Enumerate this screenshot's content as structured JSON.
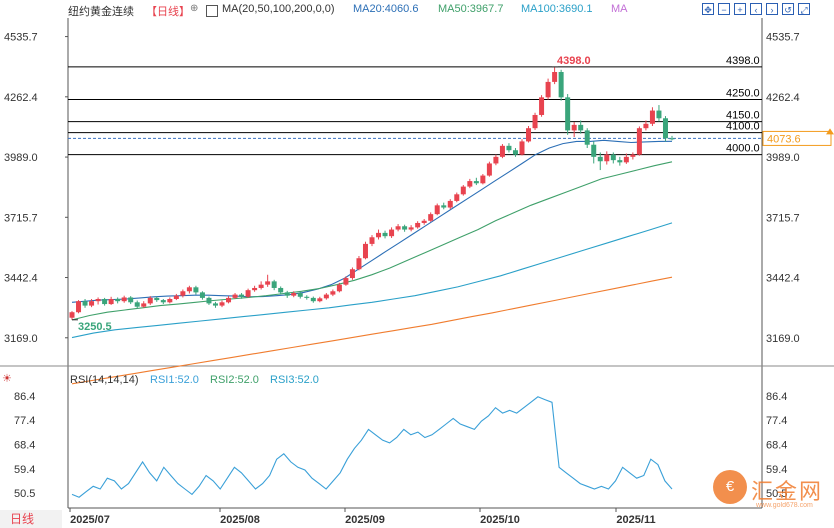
{
  "header": {
    "symbol": "纽约黄金连续",
    "period_tag": "【日线】",
    "ma_label": "MA(20,50,100,200,0,0)",
    "ma20": "MA20:4060.6",
    "ma50": "MA50:3967.7",
    "ma100": "MA100:3690.1",
    "ma_extra": "MA"
  },
  "rsi_header": {
    "label": "RSI(14,14,14)",
    "rsi1": "RSI1:52.0",
    "rsi2": "RSI2:52.0",
    "rsi3": "RSI3:52.0"
  },
  "footer": {
    "period_button": "日线"
  },
  "watermark": {
    "text": "汇金网",
    "sub": "www.gold678.com"
  },
  "colors": {
    "up": "#e8434f",
    "down": "#3aa57b",
    "ma20": "#2c6fb6",
    "ma50": "#3fa06a",
    "ma100": "#2aa0c8",
    "ma200": "#f07c2e",
    "rsi": "#3aa0d8",
    "axis": "#333333",
    "level": "#000000",
    "price_tag": "#f39b1c"
  },
  "chart_data": {
    "type": "candlestick",
    "price_axis": {
      "ylim": [
        3050,
        4620
      ],
      "ticks": [
        "4535.7",
        "4262.4",
        "3989.0",
        "3715.7",
        "3442.4",
        "3169.0"
      ]
    },
    "x_labels": [
      "2025/07",
      "2025/08",
      "2025/09",
      "2025/10",
      "2025/11"
    ],
    "levels": [
      {
        "value": 4398.0,
        "label": "4398.0"
      },
      {
        "value": 4250.0,
        "label": "4250.0"
      },
      {
        "value": 4150.0,
        "label": "4150.0"
      },
      {
        "value": 4100.0,
        "label": "4100.0"
      },
      {
        "value": 4000.0,
        "label": "4000.0"
      }
    ],
    "current_price": {
      "value": 4073.6,
      "label": "4073.6"
    },
    "annotations": [
      {
        "label": "4398.0",
        "value": 4398.0,
        "note": "high"
      },
      {
        "label": "3250.5",
        "value": 3250.5,
        "note": "low"
      }
    ],
    "candles": [
      [
        3260,
        3285,
        3290,
        3250
      ],
      [
        3285,
        3335,
        3340,
        3280
      ],
      [
        3335,
        3315,
        3345,
        3305
      ],
      [
        3315,
        3335,
        3345,
        3308
      ],
      [
        3335,
        3345,
        3352,
        3320
      ],
      [
        3345,
        3322,
        3350,
        3315
      ],
      [
        3322,
        3345,
        3355,
        3318
      ],
      [
        3345,
        3335,
        3352,
        3325
      ],
      [
        3335,
        3352,
        3360,
        3328
      ],
      [
        3352,
        3330,
        3358,
        3322
      ],
      [
        3330,
        3310,
        3338,
        3302
      ],
      [
        3310,
        3325,
        3335,
        3305
      ],
      [
        3325,
        3350,
        3358,
        3318
      ],
      [
        3350,
        3340,
        3356,
        3332
      ],
      [
        3340,
        3330,
        3345,
        3322
      ],
      [
        3330,
        3345,
        3352,
        3325
      ],
      [
        3345,
        3360,
        3368,
        3340
      ],
      [
        3360,
        3380,
        3388,
        3352
      ],
      [
        3380,
        3398,
        3405,
        3370
      ],
      [
        3398,
        3375,
        3405,
        3365
      ],
      [
        3375,
        3350,
        3380,
        3342
      ],
      [
        3350,
        3325,
        3356,
        3318
      ],
      [
        3325,
        3315,
        3332,
        3305
      ],
      [
        3315,
        3330,
        3338,
        3308
      ],
      [
        3330,
        3350,
        3358,
        3325
      ],
      [
        3350,
        3365,
        3372,
        3345
      ],
      [
        3365,
        3355,
        3372,
        3346
      ],
      [
        3355,
        3385,
        3392,
        3350
      ],
      [
        3385,
        3395,
        3405,
        3378
      ],
      [
        3395,
        3410,
        3425,
        3388
      ],
      [
        3410,
        3425,
        3455,
        3400
      ],
      [
        3425,
        3395,
        3432,
        3385
      ],
      [
        3395,
        3375,
        3402,
        3366
      ],
      [
        3375,
        3360,
        3382,
        3350
      ],
      [
        3360,
        3372,
        3380,
        3353
      ],
      [
        3372,
        3355,
        3380,
        3347
      ],
      [
        3355,
        3350,
        3362,
        3342
      ],
      [
        3350,
        3335,
        3356,
        3328
      ],
      [
        3335,
        3348,
        3355,
        3330
      ],
      [
        3348,
        3365,
        3372,
        3342
      ],
      [
        3365,
        3380,
        3388,
        3358
      ],
      [
        3380,
        3410,
        3418,
        3375
      ],
      [
        3410,
        3440,
        3448,
        3405
      ],
      [
        3440,
        3480,
        3488,
        3432
      ],
      [
        3480,
        3530,
        3540,
        3475
      ],
      [
        3530,
        3595,
        3605,
        3525
      ],
      [
        3595,
        3625,
        3635,
        3585
      ],
      [
        3625,
        3645,
        3660,
        3615
      ],
      [
        3645,
        3630,
        3655,
        3620
      ],
      [
        3630,
        3660,
        3670,
        3622
      ],
      [
        3660,
        3675,
        3685,
        3652
      ],
      [
        3675,
        3660,
        3682,
        3650
      ],
      [
        3660,
        3670,
        3680,
        3652
      ],
      [
        3670,
        3690,
        3698,
        3664
      ],
      [
        3690,
        3700,
        3708,
        3682
      ],
      [
        3700,
        3730,
        3738,
        3695
      ],
      [
        3730,
        3770,
        3778,
        3725
      ],
      [
        3770,
        3760,
        3782,
        3752
      ],
      [
        3760,
        3790,
        3798,
        3752
      ],
      [
        3790,
        3820,
        3828,
        3784
      ],
      [
        3820,
        3855,
        3862,
        3814
      ],
      [
        3855,
        3880,
        3890,
        3848
      ],
      [
        3880,
        3870,
        3895,
        3862
      ],
      [
        3870,
        3905,
        3912,
        3865
      ],
      [
        3905,
        3960,
        3968,
        3900
      ],
      [
        3960,
        3990,
        4000,
        3952
      ],
      [
        3990,
        4040,
        4048,
        3984
      ],
      [
        4040,
        4020,
        4052,
        4010
      ],
      [
        4020,
        4000,
        4030,
        3990
      ],
      [
        4000,
        4060,
        4070,
        3996
      ],
      [
        4060,
        4120,
        4130,
        4055
      ],
      [
        4120,
        4180,
        4190,
        4112
      ],
      [
        4180,
        4260,
        4270,
        4172
      ],
      [
        4260,
        4330,
        4345,
        4250
      ],
      [
        4330,
        4375,
        4398,
        4320
      ],
      [
        4375,
        4260,
        4385,
        4245
      ],
      [
        4260,
        4110,
        4275,
        4090
      ],
      [
        4110,
        4135,
        4148,
        4080
      ],
      [
        4135,
        4110,
        4155,
        4095
      ],
      [
        4110,
        4045,
        4120,
        4030
      ],
      [
        4045,
        3990,
        4060,
        3960
      ],
      [
        3990,
        3970,
        4010,
        3930
      ],
      [
        3970,
        4000,
        4015,
        3955
      ],
      [
        4000,
        3975,
        4010,
        3960
      ],
      [
        3975,
        3965,
        3990,
        3950
      ],
      [
        3965,
        3990,
        4005,
        3958
      ],
      [
        3990,
        4000,
        4010,
        3978
      ],
      [
        4000,
        4120,
        4128,
        3995
      ],
      [
        4120,
        4140,
        4155,
        4110
      ],
      [
        4140,
        4200,
        4215,
        4130
      ],
      [
        4200,
        4165,
        4225,
        4150
      ],
      [
        4165,
        4074,
        4175,
        4060
      ],
      [
        4074,
        4073.6,
        4085,
        4065
      ]
    ],
    "ma_series": {
      "MA20": {
        "start": 0,
        "values": [
          3330,
          3335,
          3340,
          3342,
          3345,
          3350,
          3355,
          3358,
          3360,
          3362,
          3362,
          3360,
          3358,
          3355,
          3356,
          3360,
          3365,
          3375,
          3390,
          3410,
          3440,
          3480,
          3520,
          3560,
          3600,
          3640,
          3680,
          3720,
          3760,
          3800,
          3840,
          3880,
          3920,
          3960,
          4000,
          4030,
          4050,
          4060,
          4060,
          4065,
          4060,
          4055,
          4058,
          4060,
          4060.6
        ]
      },
      "MA50": {
        "start": 0,
        "values": [
          3250,
          3270,
          3285,
          3295,
          3305,
          3315,
          3322,
          3330,
          3338,
          3345,
          3352,
          3360,
          3370,
          3380,
          3392,
          3410,
          3430,
          3455,
          3485,
          3520,
          3555,
          3590,
          3625,
          3660,
          3700,
          3735,
          3770,
          3800,
          3830,
          3860,
          3890,
          3910,
          3930,
          3950,
          3967.7
        ]
      },
      "MA100": {
        "start": 0,
        "values": [
          3170,
          3190,
          3205,
          3215,
          3225,
          3235,
          3245,
          3255,
          3265,
          3275,
          3285,
          3295,
          3305,
          3318,
          3330,
          3345,
          3360,
          3380,
          3400,
          3425,
          3450,
          3480,
          3510,
          3540,
          3570,
          3600,
          3630,
          3660,
          3690.1
        ]
      },
      "MA200": {
        "start": 0,
        "values": [
          2960,
          2975,
          2990,
          3005,
          3020,
          3035,
          3050,
          3065,
          3080,
          3095,
          3110,
          3125,
          3140,
          3155,
          3170,
          3185,
          3200,
          3215,
          3230,
          3248,
          3265,
          3282,
          3300,
          3318,
          3336,
          3354,
          3372,
          3390,
          3408,
          3426,
          3444
        ]
      }
    },
    "rsi": {
      "ylim": [
        45,
        90
      ],
      "ticks": [
        "86.4",
        "77.4",
        "68.4",
        "59.4",
        "50.5"
      ],
      "values": [
        50,
        49,
        51,
        53,
        52,
        56,
        55,
        52,
        54,
        58,
        62,
        58,
        55,
        60,
        57,
        54,
        52,
        50,
        53,
        57,
        55,
        52,
        56,
        60,
        58,
        55,
        52,
        54,
        57,
        63,
        65,
        62,
        60,
        59,
        56,
        54,
        52,
        55,
        58,
        63,
        67,
        70,
        74,
        72,
        70,
        69,
        71,
        74,
        72,
        73,
        71,
        72,
        74,
        76,
        78,
        76,
        75,
        74,
        77,
        79,
        82,
        80,
        81,
        80,
        82,
        84,
        86,
        85,
        84,
        60,
        58,
        56,
        54,
        53,
        52,
        53,
        52,
        55,
        60,
        58,
        56,
        57,
        63,
        61,
        55,
        52
      ]
    }
  }
}
